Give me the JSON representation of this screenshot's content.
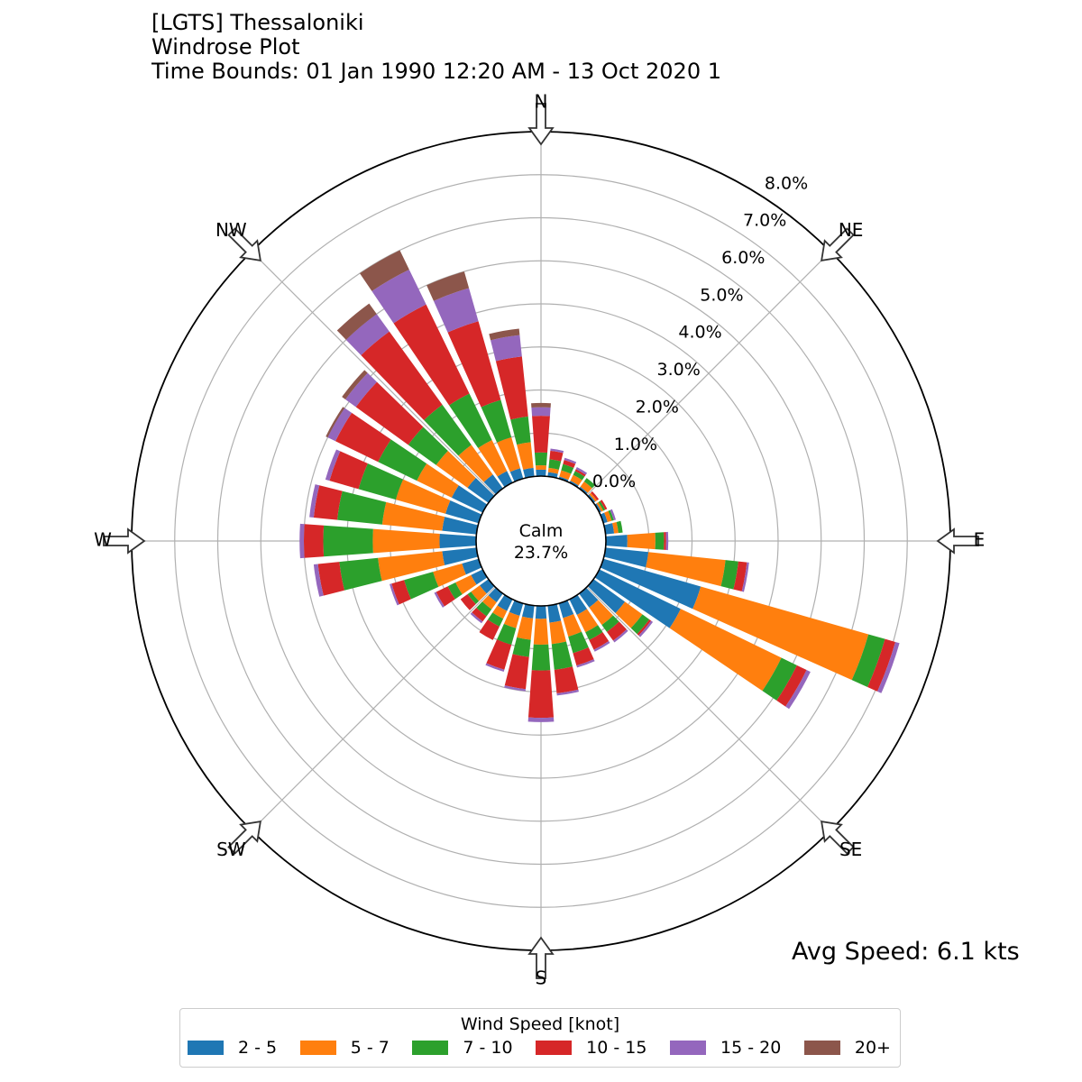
{
  "title": {
    "line1": "[LGTS] Thessaloniki",
    "line2": "Windrose Plot",
    "line3": "Time Bounds: 01 Jan 1990 12:20 AM - 13 Oct 2020 1"
  },
  "avg_speed": "Avg Speed: 6.1 kts",
  "legend": {
    "title": "Wind Speed [knot]",
    "items": [
      {
        "label": "2 - 5",
        "color": "#1f77b4"
      },
      {
        "label": "5 - 7",
        "color": "#ff7f0e"
      },
      {
        "label": "7 - 10",
        "color": "#2ca02c"
      },
      {
        "label": "10 - 15",
        "color": "#d62728"
      },
      {
        "label": "15 - 20",
        "color": "#9467bd"
      },
      {
        "label": "20+",
        "color": "#8c564b"
      }
    ]
  },
  "chart_data": {
    "type": "windrose",
    "calm_label": "Calm",
    "calm_value": "23.7%",
    "compass_labels": [
      "N",
      "NE",
      "E",
      "SE",
      "S",
      "SW",
      "W",
      "NW"
    ],
    "radial_tick_labels": [
      "0.0%",
      "1.0%",
      "2.0%",
      "3.0%",
      "4.0%",
      "5.0%",
      "6.0%",
      "7.0%",
      "8.0%"
    ],
    "rlim": [
      0,
      8
    ],
    "legend_position": "bottom",
    "grid": true,
    "series": [
      {
        "name": "2 - 5",
        "color": "#1f77b4"
      },
      {
        "name": "5 - 7",
        "color": "#ff7f0e"
      },
      {
        "name": "7 - 10",
        "color": "#2ca02c"
      },
      {
        "name": "10 - 15",
        "color": "#d62728"
      },
      {
        "name": "15 - 20",
        "color": "#9467bd"
      },
      {
        "name": "20+",
        "color": "#8c564b"
      }
    ],
    "directions": [
      0,
      10,
      20,
      30,
      40,
      50,
      60,
      70,
      80,
      90,
      100,
      110,
      120,
      130,
      140,
      150,
      160,
      170,
      180,
      190,
      200,
      210,
      220,
      230,
      240,
      250,
      260,
      270,
      280,
      290,
      300,
      310,
      320,
      330,
      340,
      350
    ],
    "cumulative_percent": [
      [
        0.15,
        0.25,
        0.55,
        1.4,
        1.6,
        1.7
      ],
      [
        0.1,
        0.2,
        0.4,
        0.6,
        0.65,
        0.65
      ],
      [
        0.05,
        0.2,
        0.35,
        0.45,
        0.5,
        0.5
      ],
      [
        0.05,
        0.2,
        0.3,
        0.35,
        0.4,
        0.4
      ],
      [
        0.05,
        0.2,
        0.3,
        0.3,
        0.3,
        0.3
      ],
      [
        0.05,
        0.1,
        0.1,
        0.15,
        0.15,
        0.15
      ],
      [
        0.05,
        0.1,
        0.15,
        0.2,
        0.2,
        0.2
      ],
      [
        0.1,
        0.2,
        0.25,
        0.25,
        0.3,
        0.3
      ],
      [
        0.2,
        0.3,
        0.4,
        0.4,
        0.4,
        0.4
      ],
      [
        0.5,
        1.15,
        1.35,
        1.4,
        1.45,
        1.45
      ],
      [
        1.0,
        2.8,
        3.1,
        3.3,
        3.35,
        3.35
      ],
      [
        2.35,
        6.4,
        6.8,
        7.05,
        7.15,
        7.15
      ],
      [
        2.1,
        4.7,
        5.1,
        5.35,
        5.45,
        5.45
      ],
      [
        0.9,
        1.4,
        1.6,
        1.65,
        1.7,
        1.7
      ],
      [
        0.4,
        0.9,
        1.1,
        1.35,
        1.4,
        1.4
      ],
      [
        0.4,
        0.85,
        1.05,
        1.3,
        1.35,
        1.35
      ],
      [
        0.35,
        0.8,
        1.2,
        1.5,
        1.55,
        1.55
      ],
      [
        0.4,
        0.9,
        1.5,
        2.05,
        2.1,
        2.1
      ],
      [
        0.3,
        0.9,
        1.5,
        2.6,
        2.7,
        2.7
      ],
      [
        0.3,
        0.8,
        1.2,
        1.95,
        2.0,
        2.0
      ],
      [
        0.3,
        0.6,
        1.0,
        1.6,
        1.65,
        1.65
      ],
      [
        0.3,
        0.5,
        0.7,
        1.05,
        1.05,
        1.05
      ],
      [
        0.25,
        0.45,
        0.65,
        0.8,
        0.85,
        0.85
      ],
      [
        0.25,
        0.5,
        0.6,
        0.8,
        0.8,
        0.8
      ],
      [
        0.3,
        0.7,
        0.9,
        1.2,
        1.25,
        1.25
      ],
      [
        0.4,
        1.1,
        1.8,
        2.1,
        2.15,
        2.15
      ],
      [
        0.8,
        2.3,
        3.2,
        3.7,
        3.8,
        3.8
      ],
      [
        0.85,
        2.4,
        3.55,
        4.0,
        4.1,
        4.1
      ],
      [
        0.8,
        2.2,
        3.25,
        3.8,
        3.9,
        3.9
      ],
      [
        0.8,
        2.0,
        2.9,
        3.6,
        3.7,
        3.7
      ],
      [
        0.8,
        1.7,
        2.7,
        3.8,
        4.0,
        4.05
      ],
      [
        0.6,
        1.5,
        2.3,
        3.8,
        4.1,
        4.2
      ],
      [
        0.4,
        1.25,
        2.4,
        4.5,
        5.0,
        5.3
      ],
      [
        0.3,
        1.1,
        2.3,
        4.6,
        5.5,
        6.0
      ],
      [
        0.25,
        1.0,
        1.9,
        3.8,
        4.6,
        5.0
      ],
      [
        0.2,
        0.8,
        1.4,
        2.8,
        3.3,
        3.45
      ]
    ]
  }
}
